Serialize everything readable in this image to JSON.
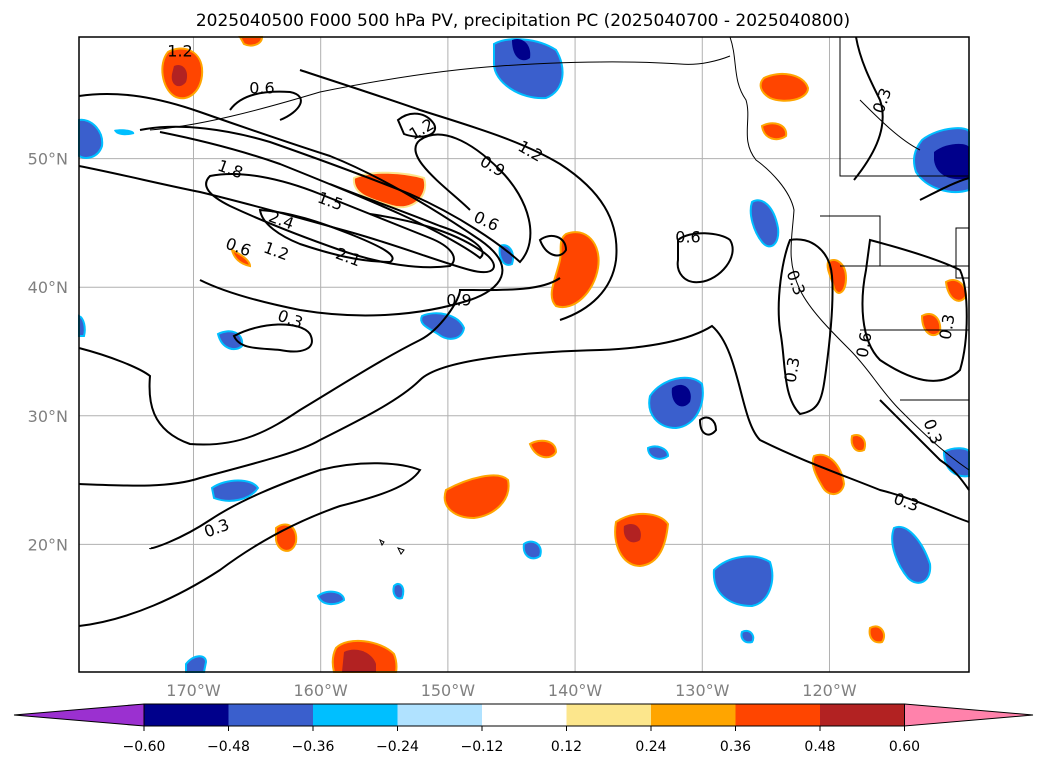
{
  "title": "2025040500 F000 500 hPa PV, precipitation PC (2025040700 - 2025040800)",
  "map": {
    "lat_labels": [
      "50°N",
      "40°N",
      "30°N",
      "20°N"
    ],
    "lon_labels": [
      "170°W",
      "160°W",
      "150°W",
      "140°W",
      "130°W",
      "120°W"
    ],
    "lon_range": [
      -179,
      -109
    ],
    "lat_range": [
      10,
      59
    ],
    "gridlines": true
  },
  "contour_labels": [
    "1.2",
    "0.6",
    "1.2",
    "1.2",
    "0.9",
    "1.8",
    "1.5",
    "2.4",
    "0.6",
    "1.2",
    "2.1",
    "0.6",
    "0.9",
    "0.3",
    "0.6",
    "0.3",
    "0.3",
    "0.3",
    "0.6",
    "0.3",
    "0.3",
    "0.3",
    "0.3"
  ],
  "colorbar": {
    "ticks": [
      "−0.60",
      "−0.48",
      "−0.36",
      "−0.24",
      "−0.12",
      "0.12",
      "0.24",
      "0.36",
      "0.48",
      "0.60"
    ],
    "colors": [
      "#9b30d0",
      "#00008b",
      "#3a5fcd",
      "#00bfff",
      "#b0e2ff",
      "#ffffff",
      "#fce68c",
      "#ffa500",
      "#ff4500",
      "#b22222",
      "#ff82ab"
    ]
  }
}
